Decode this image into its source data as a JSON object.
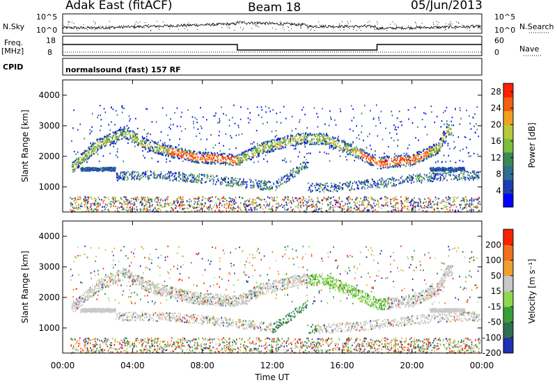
{
  "header": {
    "station": "Adak East (fitACF)",
    "beam": "Beam 18",
    "date": "05/Jun/2013"
  },
  "params": {
    "nsky_label": "N.Sky",
    "nsearch_label": "N.Search",
    "freq_label": "Freq.",
    "freq_unit": "[MHz]",
    "nave_label": "Nave",
    "cpid_label": "CPID",
    "cpid_value": "normalsound (fast) 157 RF",
    "noise_ticks_left": [
      "10^5",
      "10^0"
    ],
    "noise_ticks_right": [
      "10^5",
      "10^0"
    ],
    "freq_ticks": [
      "18",
      "8"
    ],
    "nave_ticks": [
      "60",
      "0"
    ]
  },
  "colors": {
    "power_scale": [
      "#0000ff",
      "#1f3fb0",
      "#2f6f8f",
      "#3a8a55",
      "#7bbf3a",
      "#b9c93a",
      "#f0a020",
      "#f06010",
      "#ff2000"
    ],
    "velocity_scale": [
      "#2030b0",
      "#2f6f50",
      "#39a039",
      "#8ed84e",
      "#c8c8c8",
      "#f0a030",
      "#f07020",
      "#ff2000"
    ]
  },
  "chart_data": [
    {
      "type": "heatmap",
      "name": "power",
      "xlabel": "",
      "ylabel": "Slant Range [km]",
      "xlim": [
        "00:00",
        "24:00"
      ],
      "ylim": [
        180,
        4500
      ],
      "ytick_labels": [
        "1000",
        "2000",
        "3000",
        "4000"
      ],
      "colorbar": {
        "label": "Power [dB]",
        "ticks": [
          "4",
          "8",
          "12",
          "16",
          "20",
          "24",
          "28"
        ],
        "range": [
          0,
          30
        ]
      },
      "echo_bands": [
        {
          "description": "main band",
          "points": [
            [
              "00:30",
              1650
            ],
            [
              "02:00",
              2400
            ],
            [
              "03:30",
              2800
            ],
            [
              "05:00",
              2350
            ],
            [
              "07:30",
              2000
            ],
            [
              "10:00",
              1900
            ],
            [
              "11:30",
              2300
            ],
            [
              "13:30",
              2600
            ],
            [
              "15:00",
              2600
            ],
            [
              "17:00",
              2100
            ],
            [
              "18:00",
              1800
            ],
            [
              "20:00",
              1900
            ],
            [
              "21:30",
              2300
            ],
            [
              "22:00",
              2900
            ]
          ],
          "peak_power": 28
        }
      ]
    },
    {
      "type": "heatmap",
      "name": "velocity",
      "xlabel": "Time UT",
      "ylabel": "Slant Range [km]",
      "xlim": [
        "00:00",
        "24:00"
      ],
      "ylim": [
        180,
        4500
      ],
      "xtick_labels": [
        "00:00",
        "04:00",
        "08:00",
        "12:00",
        "16:00",
        "20:00",
        "00:00"
      ],
      "ytick_labels": [
        "1000",
        "2000",
        "3000",
        "4000"
      ],
      "colorbar": {
        "label": "Velocity [m s⁻¹]",
        "ticks": [
          "200",
          "100",
          "50",
          "15",
          "-15",
          "-50",
          "-100",
          "-200"
        ],
        "range": [
          -250,
          250
        ]
      }
    }
  ],
  "frequency_steps": [
    {
      "start": "00:00",
      "end": "10:00",
      "value": "high"
    },
    {
      "start": "10:00",
      "end": "18:00",
      "value": "low"
    },
    {
      "start": "18:00",
      "end": "24:00",
      "value": "high"
    }
  ]
}
